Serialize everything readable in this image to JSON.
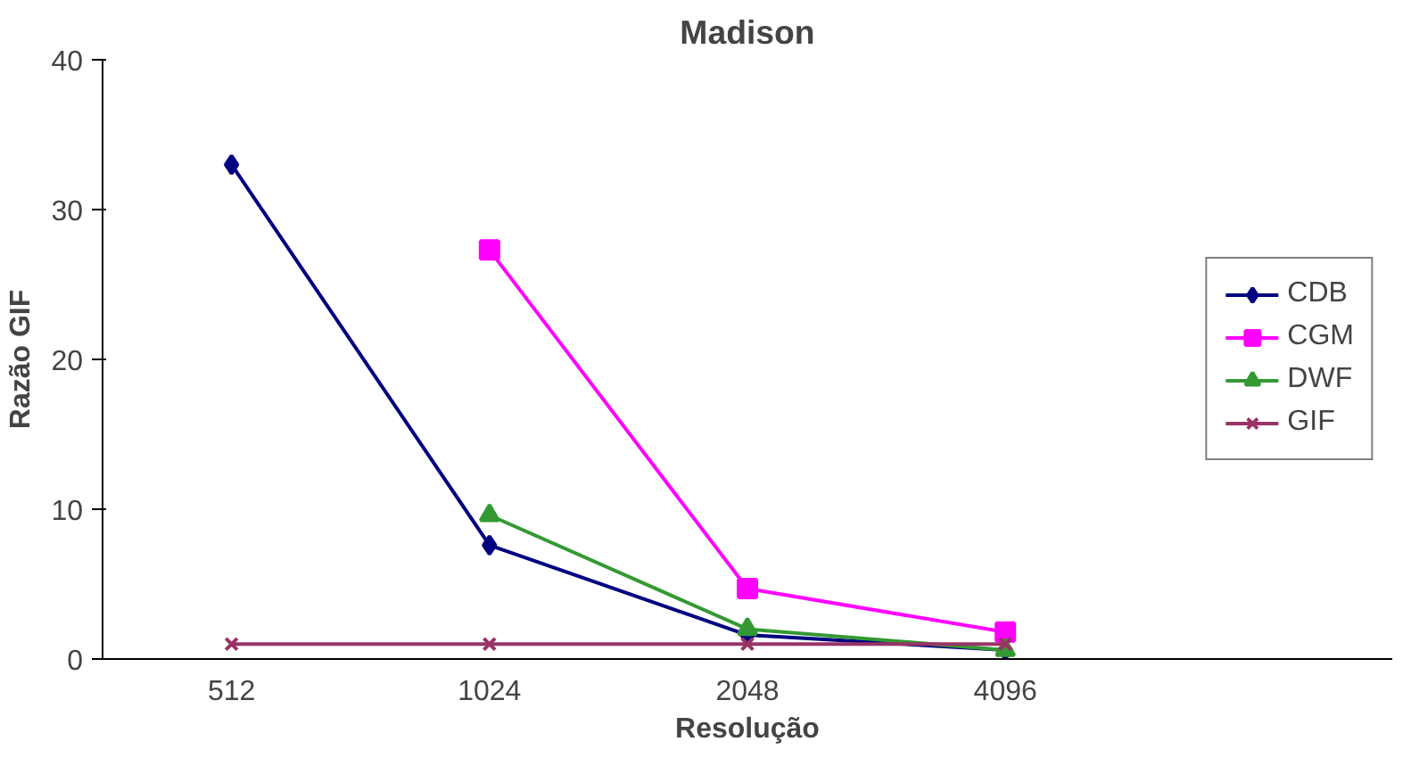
{
  "chart_data": {
    "type": "line",
    "title": "Madison",
    "xlabel": "Resolução",
    "ylabel": "Razão GIF",
    "categories": [
      "512",
      "1024",
      "2048",
      "4096"
    ],
    "ylim": [
      0,
      40
    ],
    "yticks": [
      0,
      10,
      20,
      30,
      40
    ],
    "grid": false,
    "legend": "right",
    "series": [
      {
        "name": "CDB",
        "color": "#000080",
        "marker": "diamond",
        "values": [
          33,
          7.6,
          1.6,
          0.6
        ]
      },
      {
        "name": "CGM",
        "color": "#ff00ff",
        "marker": "square",
        "values": [
          null,
          27.3,
          4.7,
          1.8
        ]
      },
      {
        "name": "DWF",
        "color": "#339933",
        "marker": "triangle",
        "values": [
          null,
          9.6,
          2.0,
          0.6
        ]
      },
      {
        "name": "GIF",
        "color": "#993366",
        "marker": "cross",
        "values": [
          1,
          1,
          1,
          1
        ]
      }
    ]
  }
}
